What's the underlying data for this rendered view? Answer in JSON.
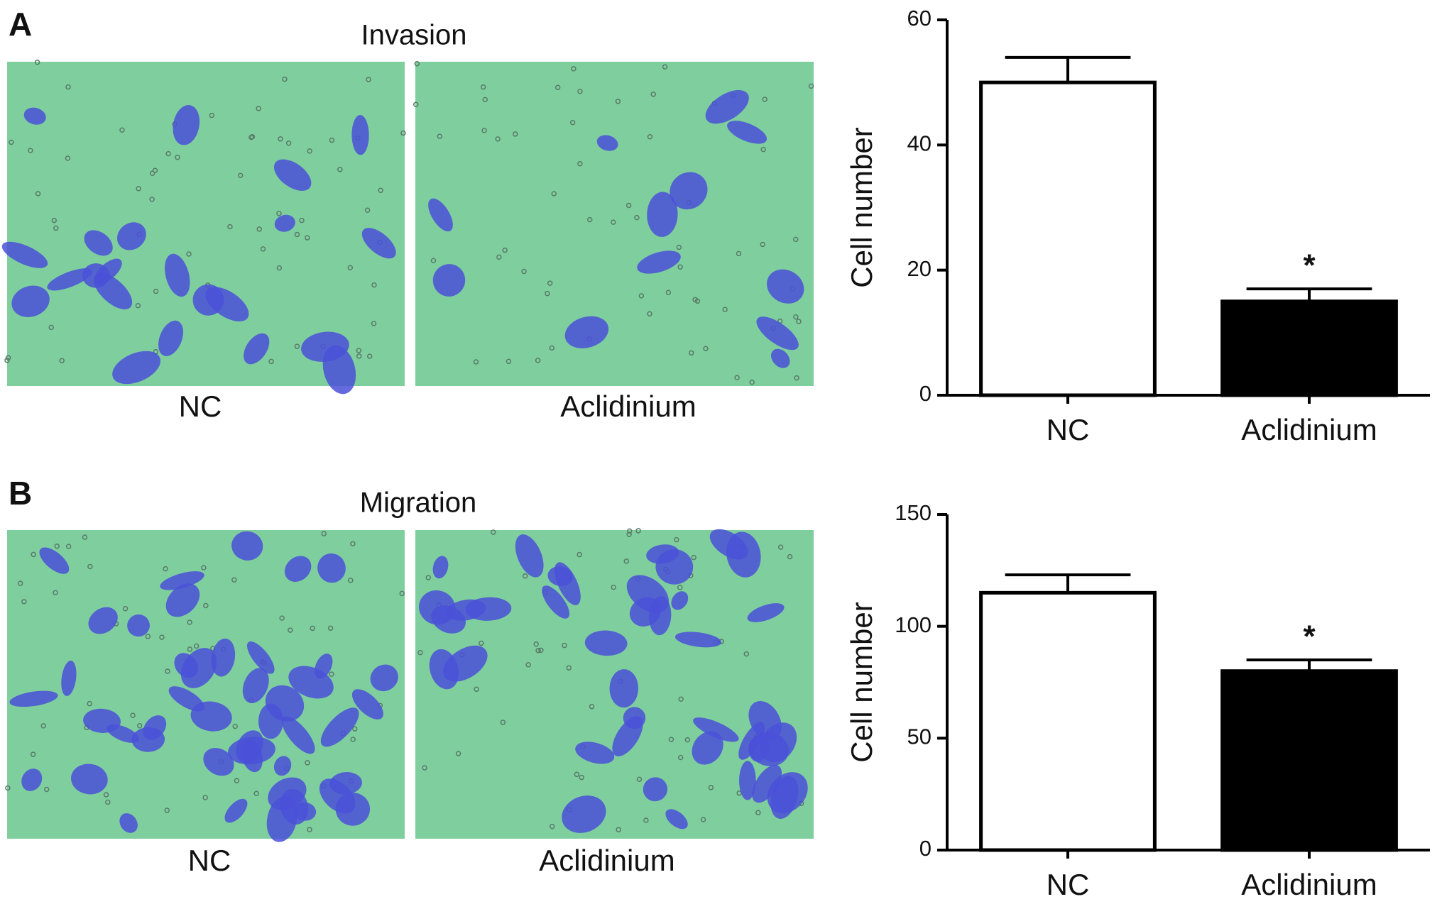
{
  "panels": [
    {
      "letter": "A",
      "title": "Invasion",
      "image_labels": [
        "NC",
        "Aclidinium"
      ]
    },
    {
      "letter": "B",
      "title": "Migration",
      "image_labels": [
        "NC",
        "Aclidinium"
      ]
    }
  ],
  "chart_data": [
    {
      "type": "bar",
      "y_label": "Cell number",
      "categories": [
        "NC",
        "Aclidinium"
      ],
      "values": [
        50,
        15
      ],
      "errors": [
        4,
        2
      ],
      "colors": [
        "#ffffff",
        "#000000"
      ],
      "significance": [
        null,
        "*"
      ],
      "ylim": [
        0,
        60
      ],
      "yticks": [
        0,
        20,
        40,
        60
      ]
    },
    {
      "type": "bar",
      "y_label": "Cell number",
      "categories": [
        "NC",
        "Aclidinium"
      ],
      "values": [
        115,
        80
      ],
      "errors": [
        8,
        5
      ],
      "colors": [
        "#ffffff",
        "#000000"
      ],
      "significance": [
        null,
        "*"
      ],
      "ylim": [
        0,
        150
      ],
      "yticks": [
        0,
        50,
        100,
        150
      ]
    }
  ]
}
